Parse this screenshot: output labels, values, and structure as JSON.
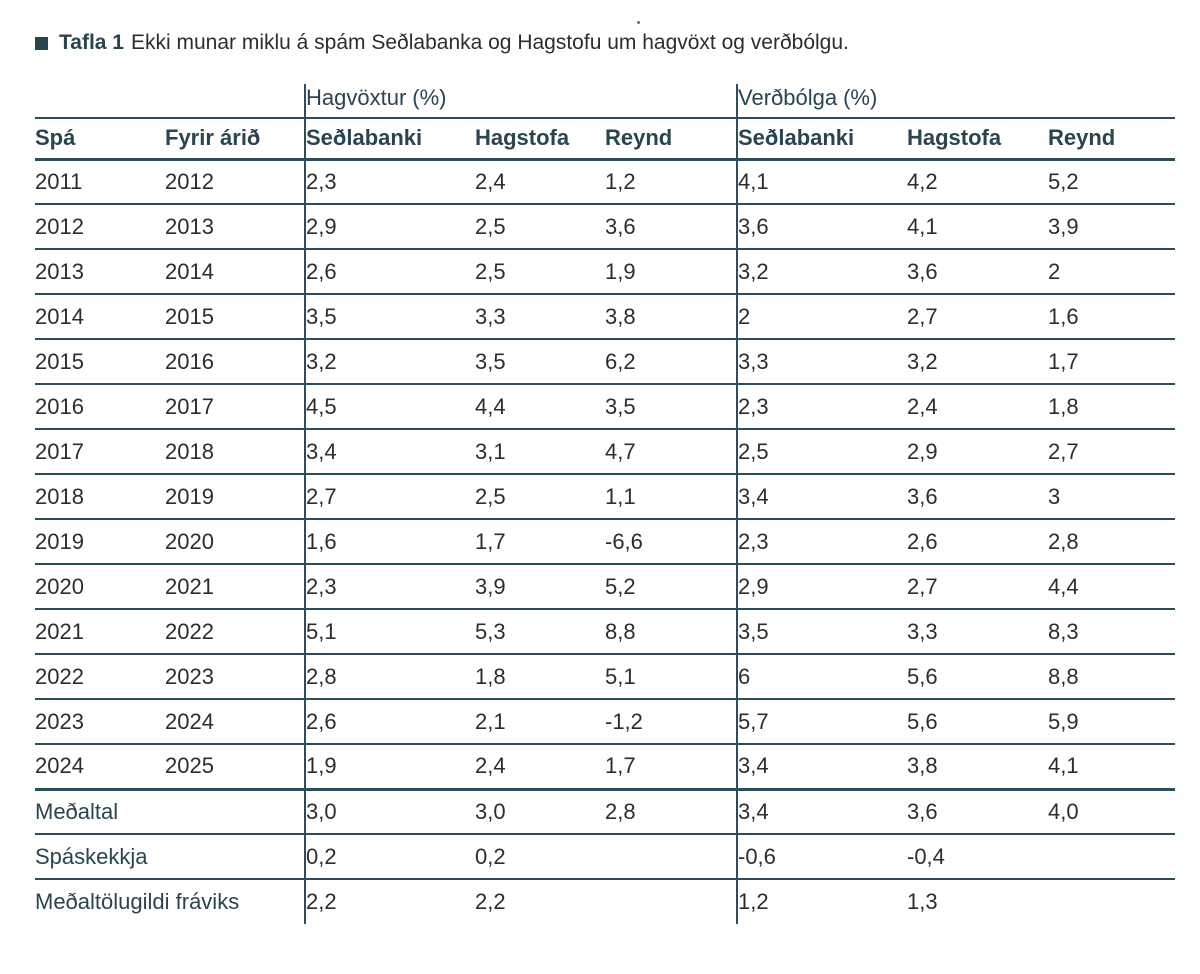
{
  "title": {
    "label": "Tafla 1",
    "text": "Ekki munar miklu á spám Seðlabanka og Hagstofu um hagvöxt og verðbólgu."
  },
  "colors": {
    "accent": "#2a4450",
    "line": "#2d4d59",
    "text": "#2d2d2d"
  },
  "table": {
    "group_headers": [
      {
        "name": "Hagvöxtur",
        "unit": "(%)"
      },
      {
        "name": "Verðbólga",
        "unit": "(%)"
      }
    ],
    "columns": [
      "Spá",
      "Fyrir árið",
      "Seðlabanki",
      "Hagstofa",
      "Reynd",
      "Seðlabanki",
      "Hagstofa",
      "Reynd"
    ],
    "rows": [
      [
        "2011",
        "2012",
        "2,3",
        "2,4",
        "1,2",
        "4,1",
        "4,2",
        "5,2"
      ],
      [
        "2012",
        "2013",
        "2,9",
        "2,5",
        "3,6",
        "3,6",
        "4,1",
        "3,9"
      ],
      [
        "2013",
        "2014",
        "2,6",
        "2,5",
        "1,9",
        "3,2",
        "3,6",
        "2"
      ],
      [
        "2014",
        "2015",
        "3,5",
        "3,3",
        "3,8",
        "2",
        "2,7",
        "1,6"
      ],
      [
        "2015",
        "2016",
        "3,2",
        "3,5",
        "6,2",
        "3,3",
        "3,2",
        "1,7"
      ],
      [
        "2016",
        "2017",
        "4,5",
        "4,4",
        "3,5",
        "2,3",
        "2,4",
        "1,8"
      ],
      [
        "2017",
        "2018",
        "3,4",
        "3,1",
        "4,7",
        "2,5",
        "2,9",
        "2,7"
      ],
      [
        "2018",
        "2019",
        "2,7",
        "2,5",
        "1,1",
        "3,4",
        "3,6",
        "3"
      ],
      [
        "2019",
        "2020",
        "1,6",
        "1,7",
        "-6,6",
        "2,3",
        "2,6",
        "2,8"
      ],
      [
        "2020",
        "2021",
        "2,3",
        "3,9",
        "5,2",
        "2,9",
        "2,7",
        "4,4"
      ],
      [
        "2021",
        "2022",
        "5,1",
        "5,3",
        "8,8",
        "3,5",
        "3,3",
        "8,3"
      ],
      [
        "2022",
        "2023",
        "2,8",
        "1,8",
        "5,1",
        "6",
        "5,6",
        "8,8"
      ],
      [
        "2023",
        "2024",
        "2,6",
        "2,1",
        "-1,2",
        "5,7",
        "5,6",
        "5,9"
      ],
      [
        "2024",
        "2025",
        "1,9",
        "2,4",
        "1,7",
        "3,4",
        "3,8",
        "4,1"
      ]
    ],
    "summary_rows": [
      {
        "label": "Meðaltal",
        "values": [
          "3,0",
          "3,0",
          "2,8",
          "3,4",
          "3,6",
          "4,0"
        ]
      },
      {
        "label": "Spáskekkja",
        "values": [
          "0,2",
          "0,2",
          "",
          "-0,6",
          "-0,4",
          ""
        ]
      },
      {
        "label": "Meðaltölugildi fráviks",
        "values": [
          "2,2",
          "2,2",
          "",
          "1,2",
          "1,3",
          ""
        ]
      }
    ]
  }
}
